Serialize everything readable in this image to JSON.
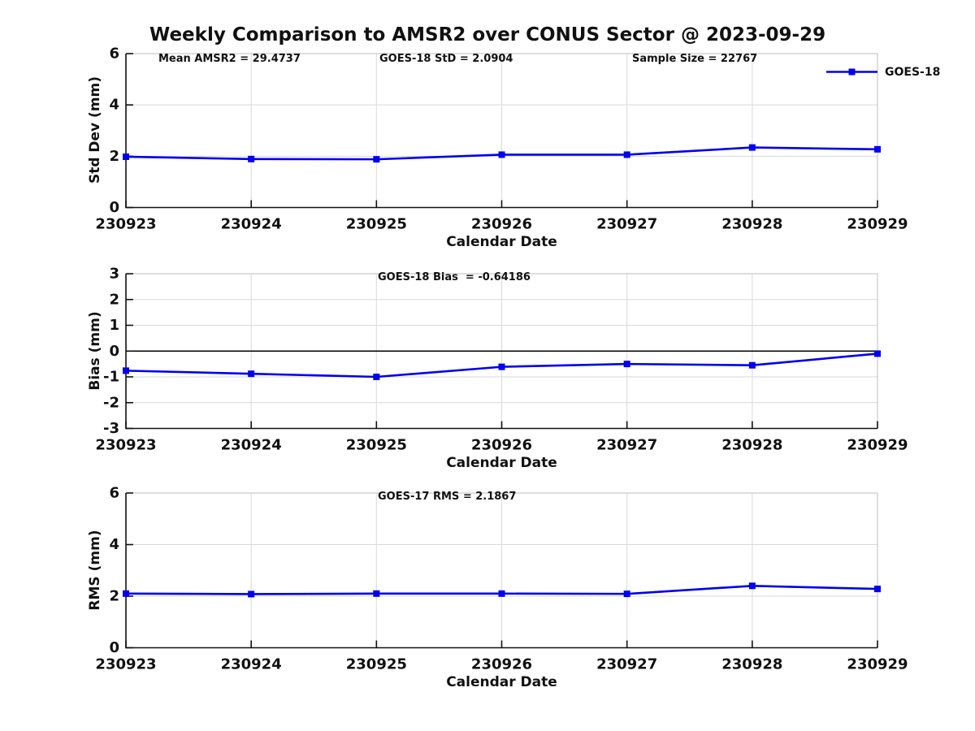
{
  "title": "Weekly Comparison to AMSR2 over CONUS Sector @ 2023-09-29",
  "colors": {
    "line": "#0000ee",
    "grid": "#d9d9d9",
    "axis": "#111111"
  },
  "chart_data": [
    {
      "id": "stddev",
      "type": "line",
      "ylabel": "Std Dev (mm)",
      "xlabel": "Calendar Date",
      "annotations": [
        "Mean AMSR2 = 29.4737",
        "GOES-18 StD = 2.0904",
        "Sample Size = 22767"
      ],
      "categories": [
        "230923",
        "230924",
        "230925",
        "230926",
        "230927",
        "230928",
        "230929"
      ],
      "series": [
        {
          "name": "GOES-18",
          "values": [
            1.98,
            1.89,
            1.88,
            2.06,
            2.06,
            2.34,
            2.27
          ]
        }
      ],
      "ylim": [
        0,
        6
      ],
      "yticks": [
        0,
        2,
        4,
        6
      ],
      "grid": true,
      "legend": {
        "label": "GOES-18",
        "position": "top-right"
      }
    },
    {
      "id": "bias",
      "type": "line",
      "ylabel": "Bias (mm)",
      "xlabel": "Calendar Date",
      "annotations": [
        "GOES-18 Bias  = -0.64186"
      ],
      "categories": [
        "230923",
        "230924",
        "230925",
        "230926",
        "230927",
        "230928",
        "230929"
      ],
      "series": [
        {
          "name": "GOES-18",
          "values": [
            -0.76,
            -0.88,
            -1.0,
            -0.61,
            -0.5,
            -0.55,
            -0.1
          ]
        }
      ],
      "ylim": [
        -3,
        3
      ],
      "yticks": [
        -3,
        -2,
        -1,
        0,
        1,
        2,
        3
      ],
      "grid": true,
      "zero_line": true
    },
    {
      "id": "rms",
      "type": "line",
      "ylabel": "RMS (mm)",
      "xlabel": "Calendar Date",
      "annotations": [
        "GOES-17 RMS = 2.1867"
      ],
      "categories": [
        "230923",
        "230924",
        "230925",
        "230926",
        "230927",
        "230928",
        "230929"
      ],
      "series": [
        {
          "name": "GOES-18",
          "values": [
            2.1,
            2.08,
            2.1,
            2.1,
            2.09,
            2.4,
            2.28
          ]
        }
      ],
      "ylim": [
        0,
        6
      ],
      "yticks": [
        0,
        2,
        4,
        6
      ],
      "grid": true
    }
  ]
}
